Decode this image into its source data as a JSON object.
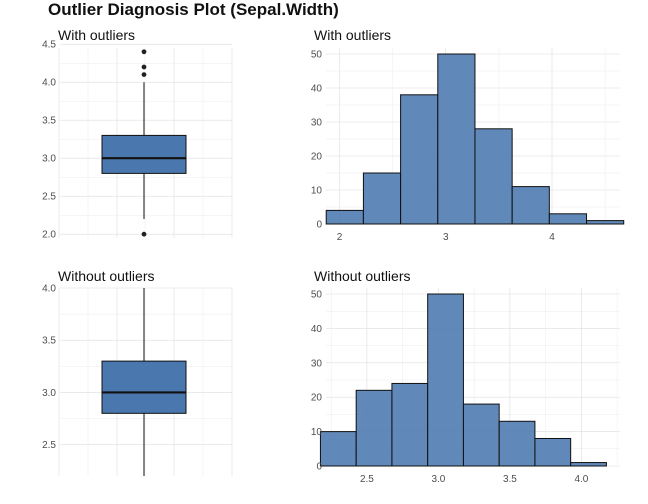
{
  "title": "Outlier Diagnosis Plot (Sepal.Width)",
  "colors": {
    "fill": "#4A78AE",
    "outline": "#111111",
    "grid": "#dedede"
  },
  "chart_data": [
    {
      "id": "box_with",
      "type": "box",
      "subtitle": "With outliers",
      "ylim": [
        1.95,
        4.45
      ],
      "yticks": [
        "2.0",
        "2.5",
        "3.0",
        "3.5",
        "4.0",
        "4.5"
      ],
      "box": {
        "q1": 2.8,
        "median": 3.0,
        "q3": 3.3,
        "whisker_low": 2.2,
        "whisker_high": 4.0
      },
      "outliers": [
        2.0,
        4.1,
        4.2,
        4.4
      ]
    },
    {
      "id": "hist_with",
      "type": "bar",
      "subtitle": "With outliers",
      "xlim": [
        1.76,
        4.64
      ],
      "ylim": [
        0,
        50
      ],
      "xticks": [
        "2",
        "3",
        "4"
      ],
      "yticks": [
        "0",
        "10",
        "20",
        "30",
        "40",
        "50"
      ],
      "bins": [
        {
          "x0": 1.875,
          "x1": 2.225,
          "count": 4
        },
        {
          "x0": 2.225,
          "x1": 2.575,
          "count": 15
        },
        {
          "x0": 2.575,
          "x1": 2.925,
          "count": 38
        },
        {
          "x0": 2.925,
          "x1": 3.275,
          "count": 50
        },
        {
          "x0": 3.275,
          "x1": 3.625,
          "count": 28
        },
        {
          "x0": 3.625,
          "x1": 3.975,
          "count": 11
        },
        {
          "x0": 3.975,
          "x1": 4.325,
          "count": 3
        },
        {
          "x0": 4.325,
          "x1": 4.675,
          "count": 1
        }
      ]
    },
    {
      "id": "box_without",
      "type": "box",
      "subtitle": "Without outliers",
      "ylim": [
        2.2,
        4.0
      ],
      "yticks": [
        "2.5",
        "3.0",
        "3.5",
        "4.0"
      ],
      "box": {
        "q1": 2.8,
        "median": 3.0,
        "q3": 3.3,
        "whisker_low": 2.2,
        "whisker_high": 4.0
      },
      "outliers": []
    },
    {
      "id": "hist_without",
      "type": "bar",
      "subtitle": "Without outliers",
      "xlim": [
        2.13,
        4.27
      ],
      "ylim": [
        0,
        50
      ],
      "xticks": [
        "2.5",
        "3.0",
        "3.5",
        "4.0"
      ],
      "yticks": [
        "0",
        "10",
        "20",
        "30",
        "40",
        "50"
      ],
      "bins": [
        {
          "x0": 2.175,
          "x1": 2.425,
          "count": 10
        },
        {
          "x0": 2.425,
          "x1": 2.675,
          "count": 22
        },
        {
          "x0": 2.675,
          "x1": 2.925,
          "count": 24
        },
        {
          "x0": 2.925,
          "x1": 3.175,
          "count": 50
        },
        {
          "x0": 3.175,
          "x1": 3.425,
          "count": 18
        },
        {
          "x0": 3.425,
          "x1": 3.675,
          "count": 13
        },
        {
          "x0": 3.675,
          "x1": 3.925,
          "count": 8
        },
        {
          "x0": 3.925,
          "x1": 4.175,
          "count": 1
        }
      ]
    }
  ]
}
